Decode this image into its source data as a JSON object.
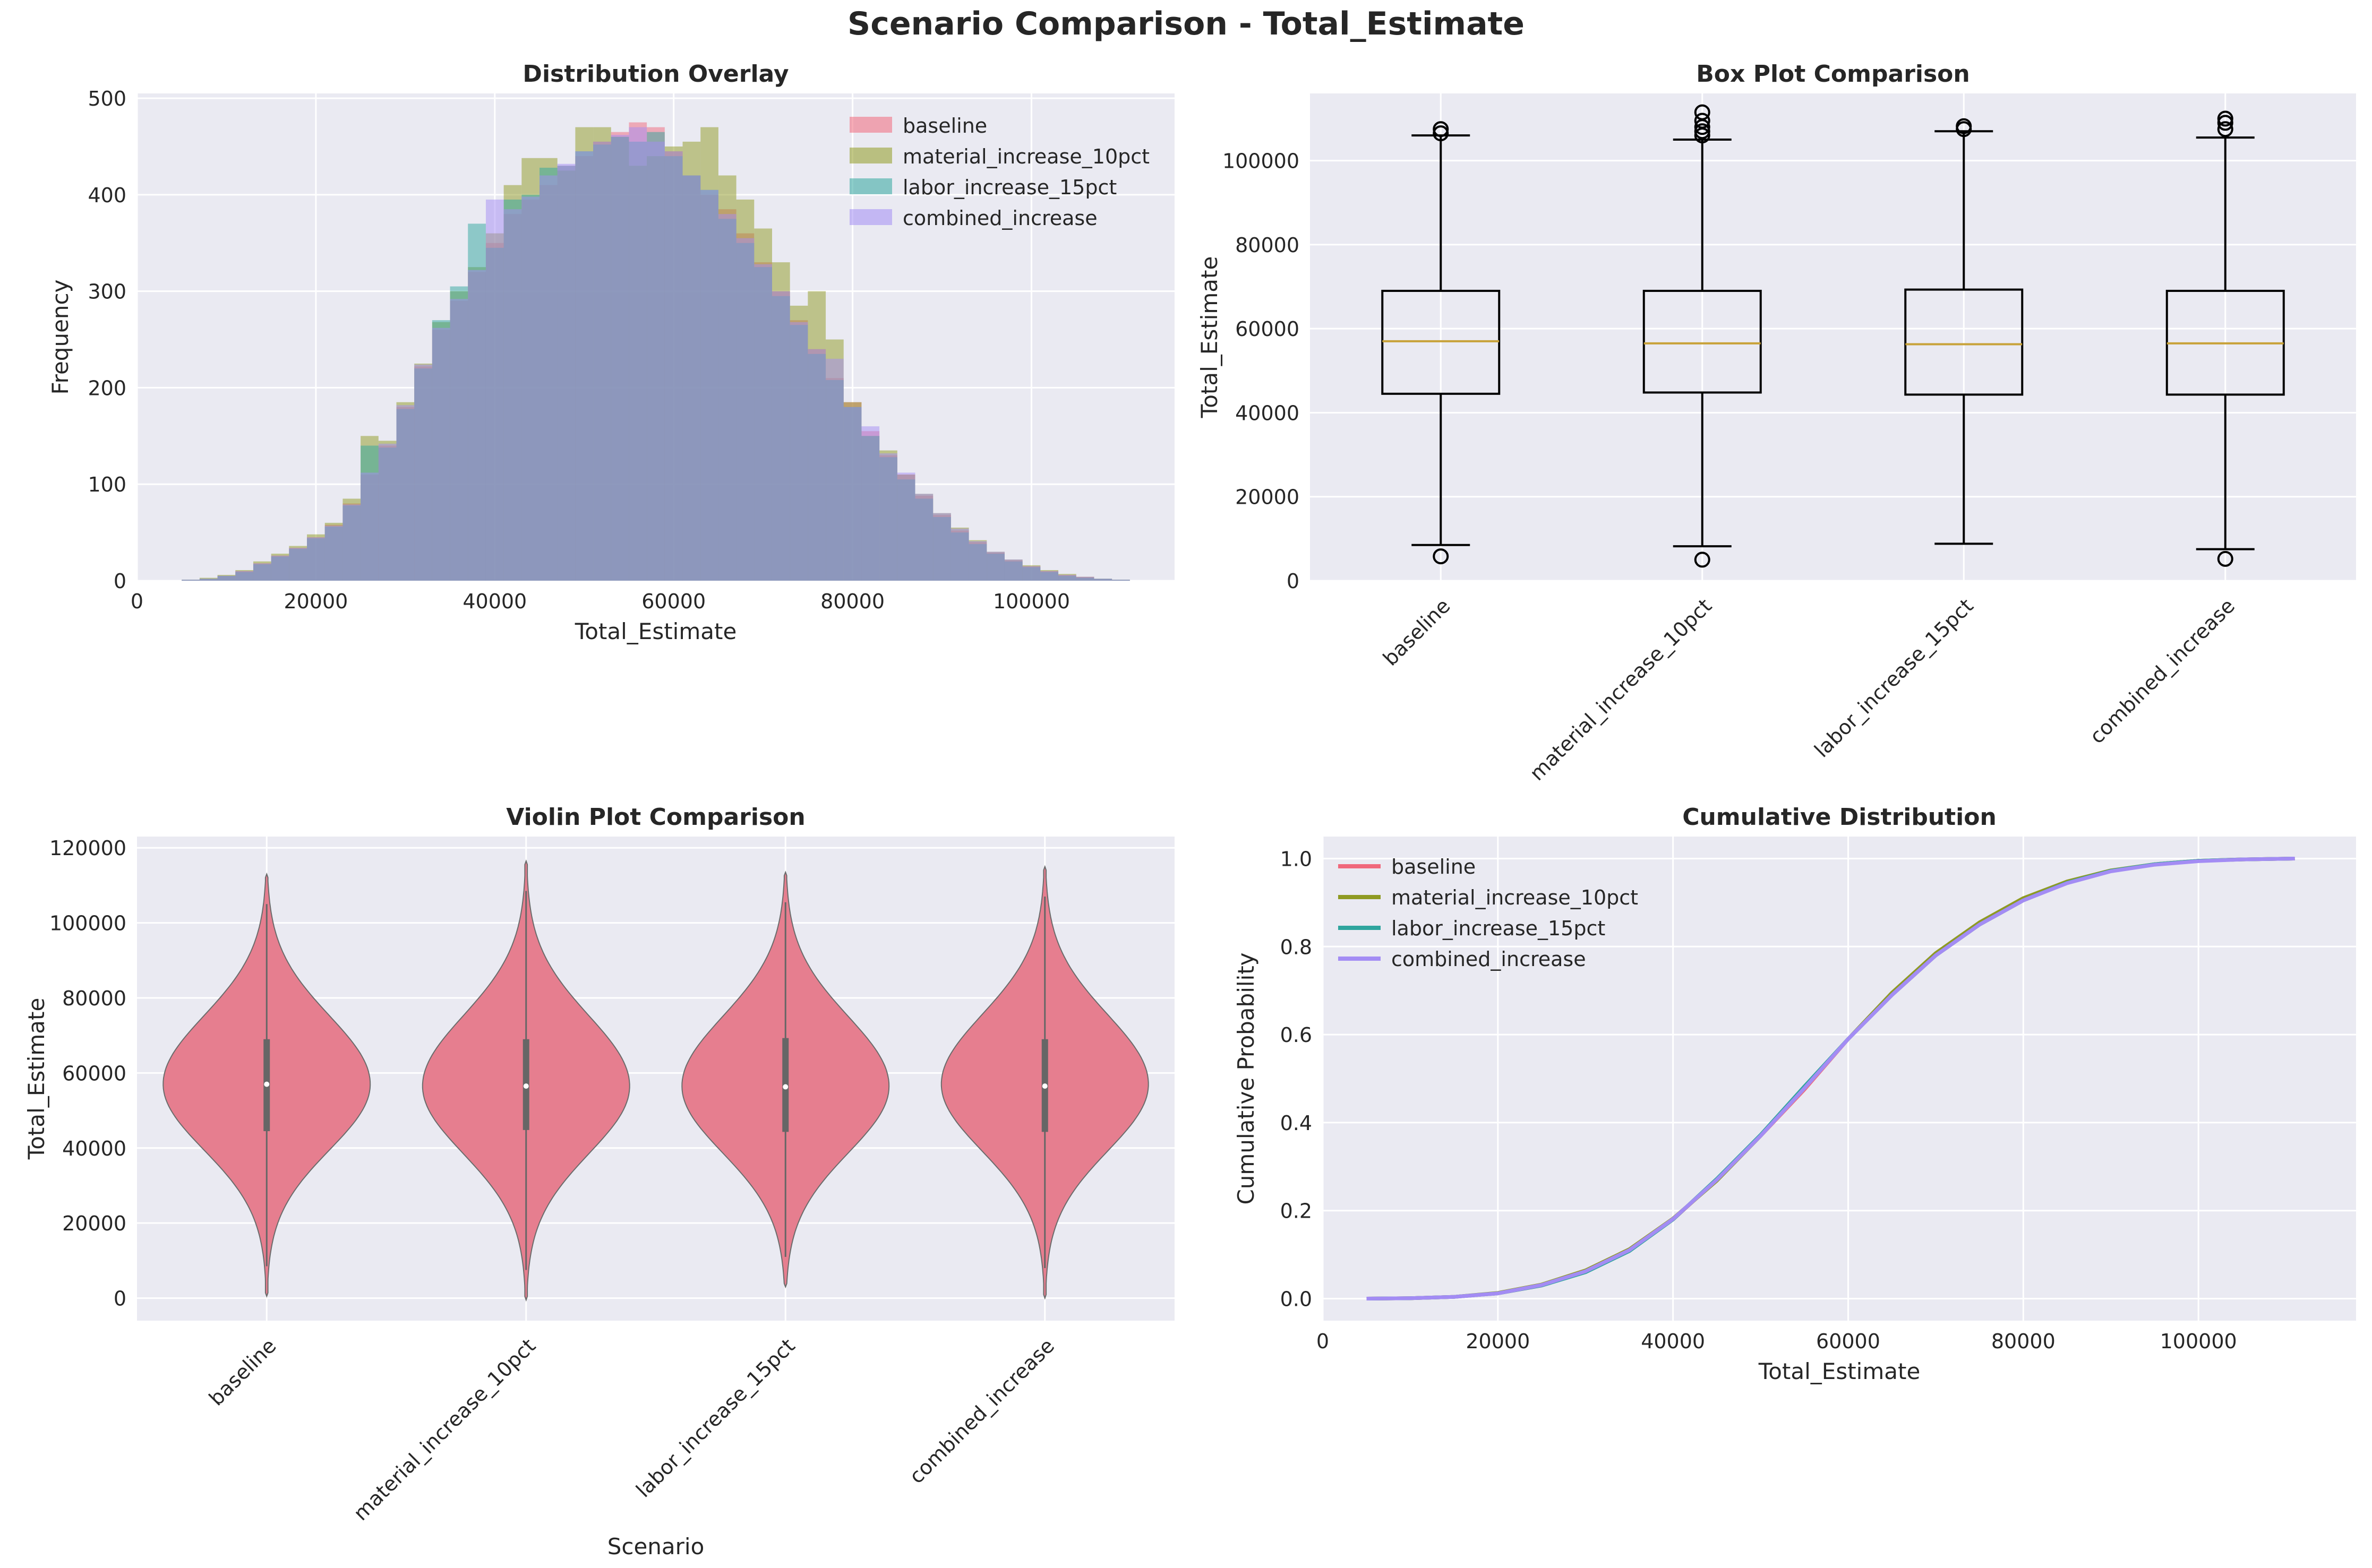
{
  "figure": {
    "suptitle": "Scenario Comparison - Total_Estimate",
    "colors": {
      "axes_bg": "#EAEAF2",
      "grid": "#FFFFFF",
      "baseline": "#F0687C",
      "material_increase_10pct": "#8F9A22",
      "labor_increase_15pct": "#2FA59E",
      "combined_increase": "#A38CF4",
      "violin_fill": "#E67E8F",
      "box_median": "#C8A23A"
    }
  },
  "chart_data": [
    {
      "type": "histogram",
      "title": "Distribution Overlay",
      "xlabel": "Total_Estimate",
      "ylabel": "Frequency",
      "xlim": [
        0,
        116000
      ],
      "ylim": [
        0,
        505
      ],
      "xticks": [
        "0",
        "20000",
        "40000",
        "60000",
        "80000",
        "100000"
      ],
      "yticks": [
        "0",
        "100",
        "200",
        "300",
        "400",
        "500"
      ],
      "legend": [
        "baseline",
        "material_increase_10pct",
        "labor_increase_15pct",
        "combined_increase"
      ],
      "legend_position": "upper right",
      "grid": true,
      "bin_centers": [
        6000,
        8000,
        10000,
        12000,
        14000,
        16000,
        18000,
        20000,
        22000,
        24000,
        26000,
        28000,
        30000,
        32000,
        34000,
        36000,
        38000,
        40000,
        42000,
        44000,
        46000,
        48000,
        50000,
        52000,
        54000,
        56000,
        58000,
        60000,
        62000,
        64000,
        66000,
        68000,
        70000,
        72000,
        74000,
        76000,
        78000,
        80000,
        82000,
        84000,
        86000,
        88000,
        90000,
        92000,
        94000,
        96000,
        98000,
        100000,
        102000,
        104000,
        106000,
        108000,
        110000,
        112000
      ],
      "series": [
        {
          "name": "baseline",
          "values": [
            1,
            2,
            5,
            10,
            18,
            26,
            34,
            45,
            58,
            80,
            110,
            140,
            180,
            222,
            260,
            290,
            320,
            350,
            380,
            395,
            410,
            430,
            440,
            455,
            465,
            475,
            470,
            445,
            420,
            400,
            385,
            360,
            330,
            300,
            270,
            240,
            210,
            185,
            155,
            130,
            110,
            88,
            68,
            52,
            40,
            29,
            21,
            15,
            10,
            6,
            4,
            2,
            1,
            0
          ]
        },
        {
          "name": "material_increase_10pct",
          "values": [
            1,
            3,
            6,
            11,
            20,
            28,
            36,
            48,
            60,
            85,
            150,
            145,
            185,
            225,
            268,
            300,
            325,
            360,
            410,
            438,
            438,
            425,
            470,
            470,
            460,
            430,
            440,
            450,
            455,
            470,
            420,
            395,
            365,
            330,
            285,
            300,
            250,
            185,
            150,
            135,
            110,
            90,
            70,
            55,
            42,
            30,
            22,
            16,
            11,
            7,
            4,
            2,
            1,
            0
          ]
        },
        {
          "name": "labor_increase_15pct",
          "values": [
            1,
            2,
            5,
            9,
            17,
            25,
            33,
            44,
            56,
            78,
            140,
            138,
            178,
            220,
            270,
            305,
            370,
            345,
            395,
            400,
            428,
            430,
            445,
            452,
            460,
            455,
            465,
            440,
            420,
            405,
            375,
            350,
            325,
            295,
            265,
            235,
            208,
            180,
            150,
            128,
            105,
            85,
            66,
            50,
            38,
            28,
            20,
            14,
            9,
            5,
            3,
            2,
            1,
            0
          ]
        },
        {
          "name": "combined_increase",
          "values": [
            1,
            2,
            5,
            10,
            18,
            26,
            34,
            45,
            57,
            79,
            112,
            142,
            182,
            224,
            262,
            292,
            322,
            395,
            385,
            398,
            420,
            432,
            445,
            455,
            462,
            470,
            455,
            445,
            420,
            405,
            380,
            355,
            328,
            300,
            268,
            240,
            230,
            180,
            160,
            132,
            112,
            90,
            70,
            54,
            41,
            30,
            22,
            15,
            10,
            6,
            4,
            2,
            1,
            0
          ]
        }
      ]
    },
    {
      "type": "box",
      "title": "Box Plot Comparison",
      "xlabel": "",
      "ylabel": "Total_Estimate",
      "ylim": [
        0,
        116000
      ],
      "yticks": [
        "0",
        "20000",
        "40000",
        "60000",
        "80000",
        "100000"
      ],
      "categories": [
        "baseline",
        "material_increase_10pct",
        "labor_increase_15pct",
        "combined_increase"
      ],
      "grid": true,
      "boxes": [
        {
          "name": "baseline",
          "whislo": 8500,
          "q1": 44500,
          "med": 57000,
          "q3": 69000,
          "whishi": 106000,
          "fliers": [
            5800,
            106500,
            107500
          ]
        },
        {
          "name": "material_increase_10pct",
          "whislo": 8200,
          "q1": 44800,
          "med": 56500,
          "q3": 69000,
          "whishi": 105000,
          "fliers": [
            5000,
            106000,
            107000,
            108000,
            109500,
            111500
          ]
        },
        {
          "name": "labor_increase_15pct",
          "whislo": 8800,
          "q1": 44300,
          "med": 56300,
          "q3": 69300,
          "whishi": 107000,
          "fliers": [
            107500,
            108200
          ]
        },
        {
          "name": "combined_increase",
          "whislo": 7500,
          "q1": 44300,
          "med": 56500,
          "q3": 69000,
          "whishi": 105500,
          "fliers": [
            5200,
            107500,
            109000,
            110000
          ]
        }
      ]
    },
    {
      "type": "violin",
      "title": "Violin Plot Comparison",
      "xlabel": "Scenario",
      "ylabel": "Total_Estimate",
      "ylim": [
        -6000,
        123000
      ],
      "yticks": [
        "0",
        "20000",
        "40000",
        "60000",
        "80000",
        "100000",
        "120000"
      ],
      "categories": [
        "baseline",
        "material_increase_10pct",
        "labor_increase_15pct",
        "combined_increase"
      ],
      "grid": true,
      "violins": [
        {
          "name": "baseline",
          "min": 500,
          "max": 113000,
          "q1": 44500,
          "med": 57000,
          "q3": 69000,
          "mode": 57000,
          "spread": 17500
        },
        {
          "name": "material_increase_10pct",
          "min": -500,
          "max": 116500,
          "q1": 44800,
          "med": 56500,
          "q3": 69000,
          "mode": 56500,
          "spread": 18000
        },
        {
          "name": "labor_increase_15pct",
          "min": 3000,
          "max": 113500,
          "q1": 44300,
          "med": 56300,
          "q3": 69300,
          "mode": 56500,
          "spread": 17800
        },
        {
          "name": "combined_increase",
          "min": 0,
          "max": 115000,
          "q1": 44300,
          "med": 56500,
          "q3": 69000,
          "mode": 57000,
          "spread": 17800
        }
      ]
    },
    {
      "type": "line",
      "title": "Cumulative Distribution",
      "xlabel": "Total_Estimate",
      "ylabel": "Cumulative Probability",
      "xlim": [
        0,
        118000
      ],
      "ylim": [
        -0.05,
        1.05
      ],
      "xticks": [
        "0",
        "20000",
        "40000",
        "60000",
        "80000",
        "100000"
      ],
      "yticks": [
        "0.0",
        "0.2",
        "0.4",
        "0.6",
        "0.8",
        "1.0"
      ],
      "legend": [
        "baseline",
        "material_increase_10pct",
        "labor_increase_15pct",
        "combined_increase"
      ],
      "legend_position": "upper left",
      "grid": true,
      "x": [
        5000,
        10000,
        15000,
        20000,
        25000,
        30000,
        35000,
        40000,
        45000,
        50000,
        55000,
        60000,
        65000,
        70000,
        75000,
        80000,
        85000,
        90000,
        95000,
        100000,
        105000,
        111000
      ],
      "series": [
        {
          "name": "baseline",
          "values": [
            0.0,
            0.001,
            0.004,
            0.012,
            0.03,
            0.062,
            0.11,
            0.18,
            0.27,
            0.37,
            0.475,
            0.59,
            0.69,
            0.78,
            0.85,
            0.905,
            0.945,
            0.972,
            0.987,
            0.995,
            0.998,
            1.0
          ]
        },
        {
          "name": "material_increase_10pct",
          "values": [
            0.0,
            0.001,
            0.004,
            0.013,
            0.032,
            0.064,
            0.112,
            0.182,
            0.268,
            0.37,
            0.48,
            0.59,
            0.695,
            0.785,
            0.855,
            0.91,
            0.948,
            0.973,
            0.987,
            0.995,
            0.998,
            1.0
          ]
        },
        {
          "name": "labor_increase_15pct",
          "values": [
            0.0,
            0.001,
            0.004,
            0.012,
            0.03,
            0.06,
            0.108,
            0.18,
            0.272,
            0.372,
            0.482,
            0.59,
            0.69,
            0.78,
            0.85,
            0.905,
            0.945,
            0.972,
            0.987,
            0.995,
            0.998,
            1.0
          ]
        },
        {
          "name": "combined_increase",
          "values": [
            0.0,
            0.001,
            0.004,
            0.012,
            0.031,
            0.062,
            0.11,
            0.181,
            0.27,
            0.37,
            0.478,
            0.59,
            0.69,
            0.78,
            0.85,
            0.905,
            0.944,
            0.971,
            0.986,
            0.994,
            0.998,
            1.0
          ]
        }
      ]
    }
  ]
}
